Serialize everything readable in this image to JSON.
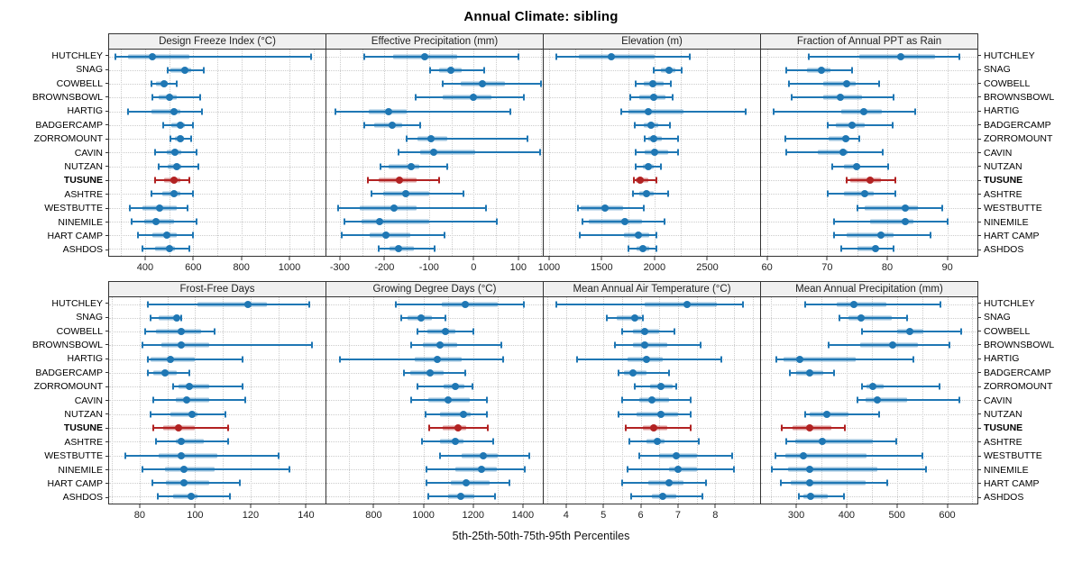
{
  "title": "Annual Climate: sibling",
  "footer": "5th-25th-50th-75th-95th Percentiles",
  "colors": {
    "normal": "#1f77b4",
    "normal_box": "rgba(31,119,180,0.45)",
    "highlight": "#b22222",
    "highlight_box": "rgba(178,34,34,0.45)",
    "grid": "#cccccc",
    "panel_border": "#333333",
    "header_bg": "#f0f0f0"
  },
  "chart_data": {
    "type": "multi-panel-percentile-dotplot",
    "title": "Annual Climate: sibling",
    "xlabel": "5th-25th-50th-75th-95th Percentiles",
    "legend_position": "none",
    "grid": true,
    "percentiles": [
      5,
      25,
      50,
      75,
      95
    ],
    "sites": [
      "HUTCHLEY",
      "SNAG",
      "COWBELL",
      "BROWNSBOWL",
      "HARTIG",
      "BADGERCAMP",
      "ZORROMOUNT",
      "CAVIN",
      "NUTZAN",
      "TUSUNE",
      "ASHTRE",
      "WESTBUTTE",
      "NINEMILE",
      "HART CAMP",
      "ASHDOS"
    ],
    "highlight_site": "TUSUNE",
    "panels": [
      {
        "title": "Design Freeze Index (°C)",
        "xmin": 250,
        "xmax": 1150,
        "ticks": [
          400,
          600,
          800,
          1000
        ],
        "gridstep": 100,
        "values": [
          [
            275,
            330,
            430,
            585,
            1090
          ],
          [
            495,
            505,
            565,
            590,
            645
          ],
          [
            425,
            445,
            480,
            495,
            530
          ],
          [
            430,
            455,
            500,
            530,
            630
          ],
          [
            330,
            425,
            520,
            545,
            635
          ],
          [
            475,
            510,
            545,
            565,
            600
          ],
          [
            505,
            525,
            545,
            560,
            590
          ],
          [
            440,
            490,
            525,
            550,
            615
          ],
          [
            455,
            495,
            530,
            550,
            620
          ],
          [
            440,
            480,
            520,
            545,
            585
          ],
          [
            425,
            470,
            520,
            545,
            600
          ],
          [
            335,
            390,
            460,
            530,
            575
          ],
          [
            345,
            395,
            445,
            520,
            615
          ],
          [
            370,
            430,
            490,
            530,
            600
          ],
          [
            390,
            440,
            500,
            525,
            585
          ]
        ]
      },
      {
        "title": "Effective Precipitation (mm)",
        "xmin": -330,
        "xmax": 155,
        "ticks": [
          -300,
          -200,
          -100,
          0,
          100
        ],
        "gridstep": 50,
        "values": [
          [
            -245,
            -180,
            -110,
            -37,
            100
          ],
          [
            -97,
            -78,
            -52,
            -27,
            23
          ],
          [
            -70,
            -28,
            20,
            70,
            150
          ],
          [
            -130,
            -70,
            0,
            40,
            112
          ],
          [
            -310,
            -235,
            -190,
            -150,
            82
          ],
          [
            -245,
            -223,
            -183,
            -160,
            -120
          ],
          [
            -150,
            -126,
            -95,
            -60,
            120
          ],
          [
            -168,
            -120,
            -90,
            3,
            148
          ],
          [
            -208,
            -190,
            -140,
            -122,
            -60
          ],
          [
            -238,
            -212,
            -167,
            -128,
            -78
          ],
          [
            -228,
            -203,
            -152,
            -100,
            -22
          ],
          [
            -304,
            -255,
            -178,
            -128,
            28
          ],
          [
            -290,
            -252,
            -210,
            -100,
            52
          ],
          [
            -295,
            -232,
            -196,
            -142,
            -65
          ],
          [
            -212,
            -188,
            -168,
            -134,
            -88
          ]
        ]
      },
      {
        "title": "Elevation (m)",
        "xmin": 950,
        "xmax": 3000,
        "ticks": [
          1000,
          1500,
          2000,
          2500
        ],
        "gridstep": 250,
        "values": [
          [
            1070,
            1285,
            1590,
            2000,
            2330
          ],
          [
            1995,
            2060,
            2140,
            2200,
            2255
          ],
          [
            1820,
            1900,
            1980,
            2085,
            2155
          ],
          [
            1770,
            1857,
            1995,
            2100,
            2175
          ],
          [
            1685,
            1750,
            1945,
            2270,
            2865
          ],
          [
            1810,
            1900,
            1970,
            2035,
            2145
          ],
          [
            1905,
            1943,
            1995,
            2070,
            2223
          ],
          [
            1820,
            1910,
            2000,
            2130,
            2220
          ],
          [
            1823,
            1886,
            1943,
            1990,
            2057
          ],
          [
            1800,
            1823,
            1866,
            1943,
            2020
          ],
          [
            1794,
            1857,
            1920,
            1990,
            2129
          ],
          [
            1277,
            1300,
            1530,
            1705,
            1900
          ],
          [
            1314,
            1380,
            1720,
            1877,
            2094
          ],
          [
            1294,
            1706,
            1843,
            1950,
            2020
          ],
          [
            1750,
            1830,
            1890,
            1950,
            2020
          ]
        ]
      },
      {
        "title": "Fraction of Annual PPT as Rain",
        "xmin": 59,
        "xmax": 95,
        "ticks": [
          60,
          70,
          80,
          90
        ],
        "gridstep": 5,
        "values": [
          [
            67,
            75.3,
            82.2,
            88,
            92
          ],
          [
            63.2,
            66.7,
            69.1,
            70.6,
            74.2
          ],
          [
            63.6,
            69.3,
            73.2,
            74.8,
            78.7
          ],
          [
            64.1,
            69.3,
            72.2,
            75.8,
            81
          ],
          [
            61.1,
            72.3,
            76.1,
            79.1,
            84.7
          ],
          [
            70.1,
            71.4,
            74.2,
            76.2,
            80.9
          ],
          [
            63.1,
            70.2,
            73.1,
            73.7,
            75.4
          ],
          [
            63.2,
            68.4,
            72.7,
            73.4,
            79.2
          ],
          [
            70.9,
            72.8,
            74.9,
            75.5,
            80.2
          ],
          [
            73.2,
            73.9,
            77.1,
            78.9,
            81.3
          ],
          [
            70.1,
            72.8,
            76.2,
            77.8,
            81.3
          ],
          [
            75,
            76.3,
            83,
            85.1,
            89.1
          ],
          [
            71.2,
            77.2,
            83,
            84.4,
            90
          ],
          [
            71.1,
            73.3,
            79,
            81,
            87.2
          ],
          [
            72.4,
            75,
            78,
            78.4,
            81
          ]
        ]
      },
      {
        "title": "Frost-Free Days",
        "xmin": 69,
        "xmax": 147,
        "ticks": [
          80,
          100,
          120,
          140
        ],
        "gridstep": 10,
        "values": [
          [
            83,
            101,
            119,
            126,
            141
          ],
          [
            84,
            87,
            93.5,
            94,
            95
          ],
          [
            82,
            86,
            95,
            102,
            107
          ],
          [
            81,
            88,
            95,
            105,
            142
          ],
          [
            83,
            84,
            91,
            100,
            117
          ],
          [
            83,
            85,
            89,
            93.5,
            98
          ],
          [
            92,
            94,
            98,
            105,
            117
          ],
          [
            85,
            93,
            97,
            105,
            118
          ],
          [
            84,
            91,
            99,
            101,
            111
          ],
          [
            85,
            88.5,
            94,
            100,
            112
          ],
          [
            86,
            93,
            95,
            103,
            112
          ],
          [
            75,
            87,
            95,
            108,
            130
          ],
          [
            81,
            89,
            96,
            107,
            134
          ],
          [
            84.5,
            89.5,
            96,
            105,
            116
          ],
          [
            86.5,
            92,
            98.5,
            101,
            112.5
          ]
        ]
      },
      {
        "title": "Growing Degree Days (°C)",
        "xmin": 610,
        "xmax": 1480,
        "ticks": [
          800,
          1000,
          1200,
          1400
        ],
        "gridstep": 100,
        "values": [
          [
            890,
            1075,
            1167,
            1300,
            1405
          ],
          [
            910,
            937,
            990,
            1035,
            1090
          ],
          [
            975,
            1015,
            1090,
            1130,
            1200
          ],
          [
            950,
            997,
            1065,
            1137,
            1315
          ],
          [
            663,
            967,
            1056,
            1154,
            1319
          ],
          [
            923,
            947,
            1027,
            1080,
            1167
          ],
          [
            975,
            1080,
            1128,
            1166,
            1197
          ],
          [
            949,
            1020,
            1100,
            1185,
            1255
          ],
          [
            1009,
            1068,
            1160,
            1190,
            1255
          ],
          [
            1024,
            1078,
            1140,
            1173,
            1259
          ],
          [
            994,
            1066,
            1130,
            1160,
            1279
          ],
          [
            1065,
            1152,
            1241,
            1298,
            1424
          ],
          [
            1012,
            1130,
            1235,
            1295,
            1406
          ],
          [
            1012,
            1110,
            1173,
            1267,
            1346
          ],
          [
            1021,
            1098,
            1149,
            1205,
            1289
          ]
        ]
      },
      {
        "title": "Mean Annual Air Temperature (°C)",
        "xmin": 3.4,
        "xmax": 9.2,
        "ticks": [
          4,
          5,
          6,
          7,
          8
        ],
        "gridstep": 0.5,
        "values": [
          [
            3.75,
            6.1,
            7.25,
            8.05,
            8.75
          ],
          [
            5.1,
            5.35,
            5.85,
            6.0,
            6.05
          ],
          [
            5.5,
            5.8,
            6.1,
            6.5,
            6.9
          ],
          [
            5.3,
            5.8,
            6.1,
            6.7,
            7.6
          ],
          [
            4.3,
            5.65,
            6.15,
            6.6,
            8.15
          ],
          [
            5.4,
            5.55,
            5.8,
            6.15,
            6.75
          ],
          [
            5.85,
            6.25,
            6.55,
            6.85,
            6.95
          ],
          [
            5.5,
            5.95,
            6.3,
            6.75,
            7.35
          ],
          [
            5.4,
            5.9,
            6.55,
            7.0,
            7.35
          ],
          [
            5.6,
            6.05,
            6.35,
            6.7,
            7.35
          ],
          [
            5.7,
            6.15,
            6.45,
            6.65,
            7.55
          ],
          [
            5.95,
            6.5,
            6.95,
            7.5,
            8.45
          ],
          [
            5.65,
            6.75,
            7.0,
            7.5,
            8.5
          ],
          [
            5.5,
            6.2,
            6.75,
            7.15,
            7.75
          ],
          [
            5.75,
            6.3,
            6.6,
            6.95,
            7.65
          ]
        ]
      },
      {
        "title": "Mean Annual Precipitation (mm)",
        "xmin": 230,
        "xmax": 660,
        "ticks": [
          300,
          400,
          500,
          600
        ],
        "gridstep": 50,
        "values": [
          [
            317,
            381,
            415,
            479,
            586
          ],
          [
            386,
            403,
            428,
            489,
            520
          ],
          [
            431,
            500,
            526,
            553,
            627
          ],
          [
            364,
            427,
            492,
            542,
            604
          ],
          [
            260,
            274,
            307,
            419,
            533
          ],
          [
            288,
            299,
            327,
            354,
            375
          ],
          [
            430,
            440,
            452,
            473,
            585
          ],
          [
            421,
            437,
            461,
            520,
            625
          ],
          [
            317,
            327,
            361,
            403,
            464
          ],
          [
            272,
            293,
            327,
            370,
            396
          ],
          [
            280,
            298,
            351,
            453,
            499
          ],
          [
            258,
            278,
            315,
            440,
            551
          ],
          [
            252,
            284,
            327,
            462,
            558
          ],
          [
            269,
            289,
            326,
            437,
            480
          ],
          [
            306,
            315,
            329,
            363,
            395
          ]
        ]
      }
    ]
  }
}
